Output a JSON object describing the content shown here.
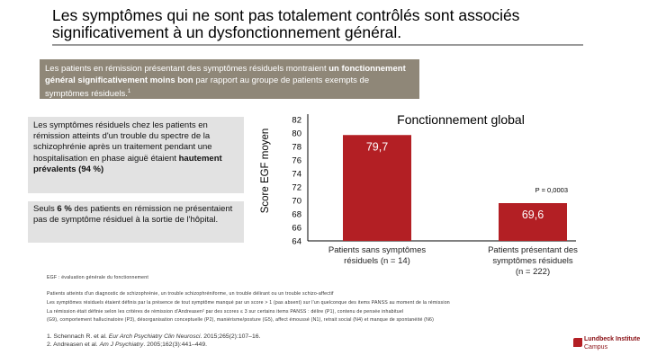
{
  "title": "Les symptômes qui ne sont pas totalement contrôlés sont associés significativement à un dysfonctionnement général.",
  "banner": {
    "text1": "Les patients en rémission présentant des symptômes résiduels montraient ",
    "bold1": "un fonctionnement général significativement moins bon",
    "text2": " par rapport au groupe de patients exempts de symptômes résiduels.",
    "sup": "1"
  },
  "box1": {
    "text": "Les symptômes résiduels chez les patients en rémission atteints d'un trouble du spectre de la schizophrénie après un traitement pendant une hospitalisation en phase aiguë étaient ",
    "bold": "hautement prévalents (94 %)"
  },
  "box2": {
    "text1": "Seuls ",
    "bold": "6 %",
    "text2": " des patients en rémission ne présentaient pas de symptôme résiduel à la sortie de l'hôpital."
  },
  "chart_data": {
    "type": "bar",
    "title": "Fonctionnement global",
    "ylabel": "Score EGF moyen",
    "ylim": [
      64,
      82
    ],
    "yticks": [
      82,
      80,
      78,
      76,
      74,
      72,
      70,
      68,
      66,
      64
    ],
    "categories": [
      "Patients sans symptômes résiduels (n = 14)",
      "Patients présentant des symptômes résiduels (n = 222)"
    ],
    "category_lines": [
      [
        "Patients sans symptômes",
        "résiduels (n = 14)"
      ],
      [
        "Patients présentant des",
        "symptômes résiduels",
        "(n = 222)"
      ]
    ],
    "values": [
      79.7,
      69.6
    ],
    "value_labels": [
      "79,7",
      "69,6"
    ],
    "bar_color": "#b31f24",
    "annotation": "P = 0,0003"
  },
  "footnotes": {
    "egf": "EGF : évaluation générale du fonctionnement",
    "lines": [
      "Patients atteints d'un diagnostic de schizophrénie, un trouble schizophréniforme, un trouble délirant ou un trouble schizo-affectif",
      "Les symptômes résiduels étaient définis par la présence de tout symptôme manqué par un score > 1 (pas absent) sur l'un quelconque des items PANSS au moment de la rémission",
      "La rémission était définie selon les critères de rémission d'Andreasen² par des scores ≤ 3 sur certains items PANSS : délire (P1), contenu de pensée inhabituel",
      "(G9), comportement hallucinatoire (P3), désorganisation conceptuelle (P2), maniérisme/posture (G5), affect émoussé (N1), retrait social (N4) et manque de spontanéité (N6)"
    ]
  },
  "references": [
    {
      "prefix": "1. Schennach R. et al. ",
      "journal": "Eur Arch Psychiatry Clin Neurosci",
      "suffix": ". 2015;265(2):107–16."
    },
    {
      "prefix": "2. Andreasen et al. ",
      "journal": "Am J Psychiatry",
      "suffix": ". 2005;162(3):441–449."
    }
  ],
  "logo": {
    "name": "Lundbeck Institute",
    "sub": "Campus"
  }
}
